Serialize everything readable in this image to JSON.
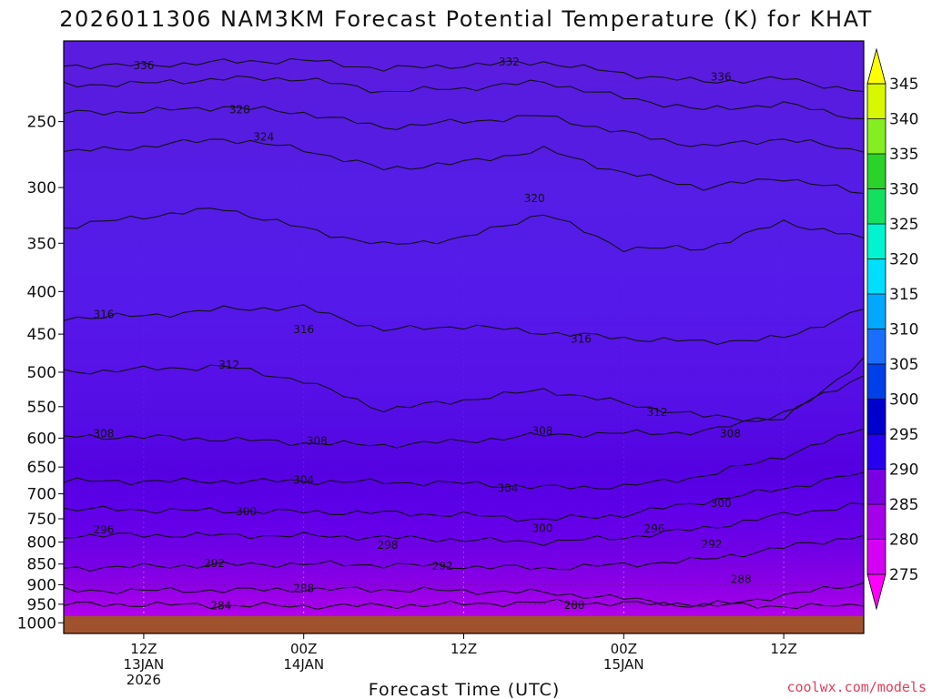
{
  "title": "2026011306 NAM3KM Forecast Potential Temperature (K) for KHAT",
  "credit": "coolwx.com/models",
  "chart_data": {
    "type": "heatmap",
    "title": "2026011306 NAM3KM Forecast Potential Temperature (K) for KHAT",
    "xlabel": "Forecast Time (UTC)",
    "ylabel": "",
    "y_axis_scale": "log-pressure",
    "y_ticks": [
      250,
      300,
      350,
      400,
      450,
      500,
      550,
      600,
      650,
      700,
      750,
      800,
      850,
      900,
      950,
      1000
    ],
    "x_ticks": [
      {
        "hour": 6,
        "lines": [
          "12Z",
          "13JAN",
          "2026"
        ]
      },
      {
        "hour": 18,
        "lines": [
          "00Z",
          "14JAN"
        ]
      },
      {
        "hour": 30,
        "lines": [
          "12Z"
        ]
      },
      {
        "hour": 42,
        "lines": [
          "00Z",
          "15JAN"
        ]
      },
      {
        "hour": 54,
        "lines": [
          "12Z"
        ]
      }
    ],
    "xlim_hours": [
      0,
      60
    ],
    "ylim_hpa": [
      1030,
      200
    ],
    "grid": true,
    "colorbar": {
      "ticks": [
        275,
        280,
        285,
        290,
        295,
        300,
        305,
        310,
        315,
        320,
        325,
        330,
        335,
        340,
        345
      ],
      "colors": [
        "#ff00ff",
        "#d400f4",
        "#a400ea",
        "#7a00e4",
        "#2800f0",
        "#0000cc",
        "#0040e8",
        "#1a6eff",
        "#00a8ff",
        "#00deff",
        "#00f4d0",
        "#14e060",
        "#2ad22a",
        "#84ee20",
        "#d8f800",
        "#ffff00"
      ]
    },
    "contour_labels": [
      {
        "value": 336,
        "hour": 6.0,
        "hpa": 214
      },
      {
        "value": 332,
        "hour": 33.4,
        "hpa": 212
      },
      {
        "value": 336,
        "hour": 49.3,
        "hpa": 221
      },
      {
        "value": 328,
        "hour": 13.2,
        "hpa": 242
      },
      {
        "value": 324,
        "hour": 15.0,
        "hpa": 261
      },
      {
        "value": 320,
        "hour": 35.3,
        "hpa": 309
      },
      {
        "value": 316,
        "hour": 3.0,
        "hpa": 426
      },
      {
        "value": 316,
        "hour": 18.0,
        "hpa": 444
      },
      {
        "value": 316,
        "hour": 38.8,
        "hpa": 456
      },
      {
        "value": 312,
        "hour": 12.4,
        "hpa": 490
      },
      {
        "value": 312,
        "hour": 44.5,
        "hpa": 559
      },
      {
        "value": 308,
        "hour": 3.0,
        "hpa": 593
      },
      {
        "value": 308,
        "hour": 19.0,
        "hpa": 605
      },
      {
        "value": 308,
        "hour": 35.9,
        "hpa": 588
      },
      {
        "value": 308,
        "hour": 50.0,
        "hpa": 593
      },
      {
        "value": 304,
        "hour": 18.0,
        "hpa": 674
      },
      {
        "value": 304,
        "hour": 33.3,
        "hpa": 689
      },
      {
        "value": 300,
        "hour": 13.7,
        "hpa": 735
      },
      {
        "value": 300,
        "hour": 35.9,
        "hpa": 770
      },
      {
        "value": 300,
        "hour": 49.3,
        "hpa": 719
      },
      {
        "value": 296,
        "hour": 3.0,
        "hpa": 773
      },
      {
        "value": 296,
        "hour": 44.3,
        "hpa": 771
      },
      {
        "value": 298,
        "hour": 24.3,
        "hpa": 807
      },
      {
        "value": 292,
        "hour": 11.3,
        "hpa": 849
      },
      {
        "value": 292,
        "hour": 28.4,
        "hpa": 855
      },
      {
        "value": 292,
        "hour": 48.6,
        "hpa": 805
      },
      {
        "value": 288,
        "hour": 18.0,
        "hpa": 909
      },
      {
        "value": 288,
        "hour": 38.3,
        "hpa": 953
      },
      {
        "value": 288,
        "hour": 50.8,
        "hpa": 887
      },
      {
        "value": 284,
        "hour": 11.8,
        "hpa": 954
      }
    ],
    "contour_levels": [
      {
        "value": 284,
        "levels_hpa": [
          950,
          951,
          953,
          955,
          954,
          950,
          945,
          948,
          952,
          955,
          955
        ]
      },
      {
        "value": 288,
        "levels_hpa": [
          915,
          915,
          914,
          912,
          912,
          916,
          920,
          935,
          955,
          928,
          895
        ]
      },
      {
        "value": 292,
        "levels_hpa": [
          860,
          856,
          852,
          850,
          852,
          856,
          860,
          852,
          840,
          812,
          785
        ]
      },
      {
        "value": 296,
        "levels_hpa": [
          786,
          785,
          785,
          786,
          790,
          795,
          800,
          790,
          770,
          742,
          720
        ]
      },
      {
        "value": 300,
        "levels_hpa": [
          730,
          732,
          734,
          736,
          738,
          742,
          752,
          742,
          715,
          690,
          660
        ]
      },
      {
        "value": 304,
        "levels_hpa": [
          676,
          676,
          676,
          676,
          678,
          680,
          688,
          686,
          666,
          630,
          585
        ]
      },
      {
        "value": 308,
        "levels_hpa": [
          598,
          598,
          602,
          608,
          612,
          605,
          595,
          592,
          590,
          560,
          505
        ]
      },
      {
        "value": 312,
        "levels_hpa": [
          500,
          496,
          492,
          512,
          555,
          540,
          525,
          545,
          565,
          570,
          480
        ]
      },
      {
        "value": 316,
        "levels_hpa": [
          430,
          428,
          420,
          418,
          445,
          440,
          448,
          455,
          460,
          455,
          420
        ]
      },
      {
        "value": 320,
        "levels_hpa": [
          335,
          325,
          318,
          336,
          352,
          345,
          322,
          355,
          355,
          330,
          345
        ]
      },
      {
        "value": 324,
        "levels_hpa": [
          272,
          268,
          262,
          270,
          285,
          280,
          270,
          288,
          300,
          292,
          305
        ]
      },
      {
        "value": 328,
        "levels_hpa": [
          244,
          243,
          240,
          244,
          254,
          250,
          246,
          258,
          268,
          262,
          272
        ]
      },
      {
        "value": 332,
        "levels_hpa": [
          226,
          225,
          222,
          222,
          230,
          228,
          224,
          234,
          242,
          238,
          248
        ]
      },
      {
        "value": 336,
        "levels_hpa": [
          214,
          214,
          212,
          211,
          216,
          214,
          212,
          219,
          224,
          222,
          230
        ]
      }
    ],
    "contour_levels_hours": [
      0,
      6,
      12,
      18,
      24,
      30,
      36,
      42,
      48,
      54,
      60
    ]
  },
  "icons": {
    "colorbar_top": "triangle-up",
    "colorbar_bottom": "triangle-down"
  }
}
